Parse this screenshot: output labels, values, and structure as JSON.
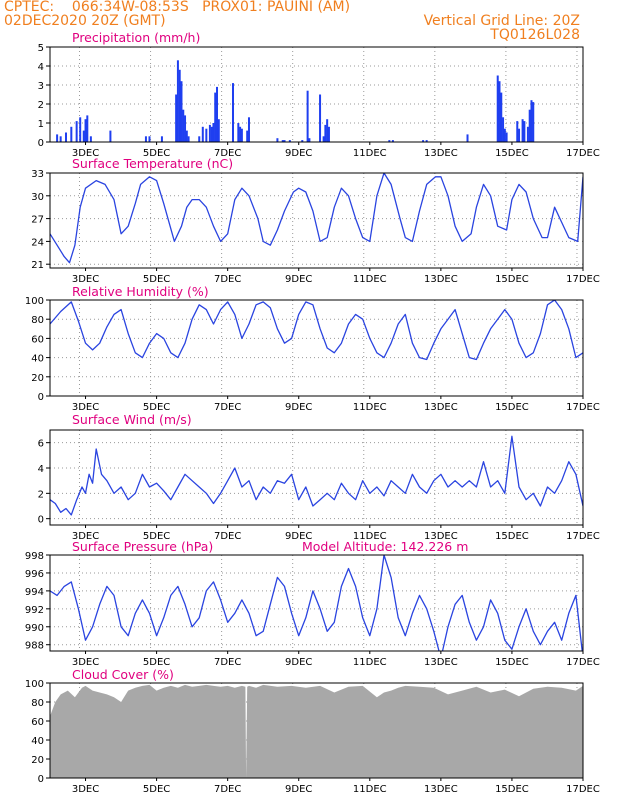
{
  "header": {
    "line1_left": "CPTEC:    066:34W-08:53S   PROX01: PAUINI (AM)",
    "line2_left": "02DEC2020 20Z (GMT)",
    "line2_right": "Vertical Grid Line: 20Z",
    "line3_right": "TQ0126L028"
  },
  "colors": {
    "header": "#f07f1f",
    "title": "#e0007f",
    "series": "#2a44e0",
    "precip": "#1f3ff0",
    "cloud": "#a8a8a8",
    "grid": "#9a9a9a"
  },
  "x_axis": {
    "range_days": [
      2.0,
      17.0
    ],
    "ticks": [
      {
        "day": 3,
        "label": "3DEC"
      },
      {
        "day": 5,
        "label": "5DEC"
      },
      {
        "day": 7,
        "label": "7DEC"
      },
      {
        "day": 9,
        "label": "9DEC"
      },
      {
        "day": 11,
        "label": "11DEC"
      },
      {
        "day": 13,
        "label": "13DEC"
      },
      {
        "day": 15,
        "label": "15DEC"
      },
      {
        "day": 17,
        "label": "17DEC"
      }
    ],
    "vertical_grid_days": [
      2.83,
      4.83,
      6.83,
      8.83,
      10.83,
      12.83,
      14.83,
      16.83
    ]
  },
  "chart_data": [
    {
      "type": "bar",
      "title": "Precipitation (mm/h)",
      "ylim": [
        0,
        5
      ],
      "yticks": [
        0,
        1,
        2,
        3,
        4,
        5
      ],
      "x": [
        2.2,
        2.3,
        2.45,
        2.6,
        2.75,
        2.85,
        2.95,
        3.0,
        3.05,
        3.15,
        3.7,
        4.7,
        4.8,
        5.15,
        5.55,
        5.6,
        5.65,
        5.7,
        5.75,
        5.8,
        5.85,
        5.9,
        6.2,
        6.3,
        6.4,
        6.5,
        6.55,
        6.6,
        6.65,
        6.7,
        6.75,
        7.15,
        7.3,
        7.35,
        7.4,
        7.55,
        7.6,
        8.4,
        8.55,
        8.6,
        8.75,
        9.1,
        9.25,
        9.3,
        9.6,
        9.7,
        9.75,
        9.8,
        9.85,
        11.55,
        11.65,
        12.5,
        12.6,
        13.75,
        14.6,
        14.65,
        14.7,
        14.75,
        14.8,
        14.85,
        15.15,
        15.2,
        15.3,
        15.35,
        15.45,
        15.5,
        15.55,
        15.6
      ],
      "values": [
        0.4,
        0.3,
        0.5,
        0.8,
        1.1,
        1.3,
        0.6,
        1.2,
        1.4,
        0.3,
        0.6,
        0.3,
        0.3,
        0.3,
        2.5,
        4.3,
        3.8,
        3.2,
        1.7,
        1.4,
        0.6,
        0.3,
        0.3,
        0.8,
        0.7,
        0.9,
        0.8,
        1.0,
        2.6,
        2.9,
        1.2,
        3.1,
        1.0,
        0.8,
        0.7,
        0.6,
        1.3,
        0.2,
        0.1,
        0.1,
        0.1,
        0.1,
        2.7,
        0.2,
        2.5,
        0.3,
        0.9,
        1.2,
        0.8,
        0.1,
        0.1,
        0.1,
        0.1,
        0.4,
        3.5,
        3.2,
        2.6,
        1.3,
        0.7,
        0.5,
        1.1,
        0.7,
        1.2,
        1.1,
        0.8,
        1.7,
        2.2,
        2.1
      ]
    },
    {
      "type": "line",
      "title": "Surface Temperature (nC)",
      "ylim": [
        20.5,
        33
      ],
      "yticks": [
        21,
        24,
        27,
        30,
        33
      ],
      "x": [
        2.0,
        2.2,
        2.4,
        2.55,
        2.7,
        2.85,
        3.0,
        3.3,
        3.55,
        3.8,
        4.0,
        4.2,
        4.4,
        4.55,
        4.8,
        5.0,
        5.2,
        5.5,
        5.7,
        5.85,
        6.0,
        6.2,
        6.4,
        6.6,
        6.8,
        7.0,
        7.2,
        7.4,
        7.6,
        7.85,
        8.0,
        8.2,
        8.4,
        8.6,
        8.85,
        9.0,
        9.2,
        9.4,
        9.6,
        9.8,
        10.0,
        10.2,
        10.4,
        10.6,
        10.8,
        11.0,
        11.2,
        11.4,
        11.6,
        11.85,
        12.0,
        12.2,
        12.4,
        12.6,
        12.85,
        13.0,
        13.2,
        13.4,
        13.6,
        13.85,
        14.0,
        14.2,
        14.4,
        14.6,
        14.85,
        15.0,
        15.2,
        15.4,
        15.6,
        15.85,
        16.0,
        16.2,
        16.4,
        16.6,
        16.85,
        17.0
      ],
      "values": [
        25.0,
        23.5,
        22.0,
        21.2,
        23.5,
        28.5,
        31.0,
        32.0,
        31.5,
        29.5,
        25.0,
        26.0,
        29.0,
        31.5,
        32.5,
        32.0,
        29.0,
        24.0,
        26.0,
        28.5,
        29.5,
        29.5,
        28.5,
        26.0,
        24.0,
        25.0,
        29.5,
        31.0,
        30.0,
        27.0,
        24.0,
        23.5,
        25.5,
        28.0,
        30.5,
        31.0,
        30.5,
        28.0,
        24.0,
        24.5,
        28.5,
        31.0,
        30.0,
        27.0,
        24.5,
        24.0,
        30.0,
        33.0,
        31.5,
        27.0,
        24.5,
        24.0,
        28.0,
        31.5,
        32.5,
        32.5,
        30.0,
        26.0,
        24.0,
        25.0,
        28.5,
        31.5,
        30.0,
        26.0,
        25.5,
        29.5,
        31.5,
        30.5,
        27.0,
        24.5,
        24.5,
        28.5,
        26.5,
        24.5,
        24.0,
        32.5
      ]
    },
    {
      "type": "line",
      "title": "Relative Humidity (%)",
      "ylim": [
        0,
        100
      ],
      "yticks": [
        0,
        20,
        40,
        60,
        80,
        100
      ],
      "x": [
        2.0,
        2.3,
        2.6,
        2.8,
        3.0,
        3.2,
        3.4,
        3.6,
        3.8,
        4.0,
        4.2,
        4.4,
        4.6,
        4.8,
        5.0,
        5.2,
        5.4,
        5.6,
        5.8,
        6.0,
        6.2,
        6.4,
        6.6,
        6.8,
        7.0,
        7.2,
        7.4,
        7.6,
        7.8,
        8.0,
        8.2,
        8.4,
        8.6,
        8.8,
        9.0,
        9.2,
        9.4,
        9.6,
        9.8,
        10.0,
        10.2,
        10.4,
        10.6,
        10.8,
        11.0,
        11.2,
        11.4,
        11.6,
        11.8,
        12.0,
        12.2,
        12.4,
        12.6,
        12.8,
        13.0,
        13.2,
        13.4,
        13.6,
        13.8,
        14.0,
        14.2,
        14.4,
        14.6,
        14.8,
        15.0,
        15.2,
        15.4,
        15.6,
        15.8,
        16.0,
        16.2,
        16.4,
        16.6,
        16.8,
        17.0
      ],
      "values": [
        75,
        88,
        98,
        78,
        55,
        48,
        55,
        72,
        85,
        90,
        65,
        45,
        40,
        55,
        65,
        60,
        45,
        40,
        55,
        80,
        95,
        90,
        75,
        90,
        98,
        85,
        60,
        75,
        95,
        98,
        92,
        70,
        55,
        60,
        85,
        98,
        95,
        70,
        50,
        45,
        55,
        75,
        85,
        80,
        60,
        45,
        40,
        55,
        75,
        85,
        55,
        40,
        38,
        55,
        70,
        80,
        90,
        65,
        40,
        38,
        55,
        70,
        80,
        90,
        80,
        55,
        40,
        45,
        65,
        95,
        100,
        90,
        70,
        40,
        45
      ]
    },
    {
      "type": "line",
      "title": "Surface Wind (m/s)",
      "ylim": [
        -0.5,
        7
      ],
      "yticks": [
        0,
        2,
        4,
        6
      ],
      "x": [
        2.0,
        2.15,
        2.3,
        2.45,
        2.6,
        2.75,
        2.9,
        3.0,
        3.1,
        3.2,
        3.3,
        3.45,
        3.6,
        3.8,
        4.0,
        4.2,
        4.4,
        4.6,
        4.8,
        5.0,
        5.2,
        5.4,
        5.6,
        5.8,
        6.0,
        6.2,
        6.4,
        6.6,
        6.8,
        7.0,
        7.2,
        7.4,
        7.6,
        7.8,
        8.0,
        8.2,
        8.4,
        8.6,
        8.8,
        9.0,
        9.2,
        9.4,
        9.6,
        9.8,
        10.0,
        10.2,
        10.4,
        10.6,
        10.8,
        11.0,
        11.2,
        11.4,
        11.6,
        11.8,
        12.0,
        12.2,
        12.4,
        12.6,
        12.8,
        13.0,
        13.2,
        13.4,
        13.6,
        13.8,
        14.0,
        14.2,
        14.4,
        14.6,
        14.8,
        15.0,
        15.2,
        15.4,
        15.6,
        15.8,
        16.0,
        16.2,
        16.4,
        16.6,
        16.8,
        17.0
      ],
      "values": [
        1.5,
        1.2,
        0.5,
        0.8,
        0.3,
        1.5,
        2.5,
        2.0,
        3.5,
        2.8,
        5.5,
        3.5,
        3.0,
        2.0,
        2.5,
        1.5,
        2.0,
        3.5,
        2.5,
        2.8,
        2.2,
        1.5,
        2.5,
        3.5,
        3.0,
        2.5,
        2.0,
        1.2,
        2.0,
        3.0,
        4.0,
        2.5,
        3.0,
        1.5,
        2.5,
        2.0,
        3.0,
        2.8,
        3.5,
        1.5,
        2.5,
        1.0,
        1.5,
        2.0,
        1.5,
        2.8,
        2.0,
        1.5,
        3.0,
        2.0,
        2.5,
        1.8,
        3.0,
        2.5,
        2.0,
        3.5,
        2.5,
        2.0,
        3.0,
        3.5,
        2.5,
        3.0,
        2.5,
        3.0,
        2.5,
        4.5,
        2.5,
        3.0,
        2.0,
        6.5,
        2.5,
        1.5,
        2.0,
        1.0,
        2.5,
        2.0,
        3.0,
        4.5,
        3.5,
        1.0
      ]
    },
    {
      "type": "line",
      "title": "Surface Pressure (hPa)",
      "annotation": "Model Altitude: 142.226 m",
      "ylim": [
        987.3,
        998
      ],
      "yticks": [
        988,
        990,
        992,
        994,
        996,
        998
      ],
      "x": [
        2.0,
        2.2,
        2.4,
        2.6,
        2.8,
        3.0,
        3.2,
        3.4,
        3.6,
        3.8,
        4.0,
        4.2,
        4.4,
        4.6,
        4.8,
        5.0,
        5.2,
        5.4,
        5.6,
        5.8,
        6.0,
        6.2,
        6.4,
        6.6,
        6.8,
        7.0,
        7.2,
        7.4,
        7.6,
        7.8,
        8.0,
        8.2,
        8.4,
        8.6,
        8.8,
        9.0,
        9.2,
        9.4,
        9.6,
        9.8,
        10.0,
        10.2,
        10.4,
        10.6,
        10.8,
        11.0,
        11.2,
        11.4,
        11.6,
        11.8,
        12.0,
        12.2,
        12.4,
        12.6,
        12.8,
        13.0,
        13.2,
        13.4,
        13.6,
        13.8,
        14.0,
        14.2,
        14.4,
        14.6,
        14.8,
        15.0,
        15.2,
        15.4,
        15.6,
        15.8,
        16.0,
        16.2,
        16.4,
        16.6,
        16.8,
        17.0
      ],
      "values": [
        994.0,
        993.5,
        994.5,
        995.0,
        992.0,
        988.5,
        990.0,
        992.5,
        994.5,
        993.5,
        990.0,
        989.0,
        991.5,
        993.0,
        991.5,
        989.0,
        991.0,
        993.5,
        994.5,
        992.5,
        990.0,
        991.0,
        994.0,
        995.0,
        993.0,
        990.5,
        991.5,
        993.0,
        991.5,
        989.0,
        989.5,
        992.5,
        995.5,
        994.5,
        991.5,
        989.0,
        991.0,
        994.0,
        992.0,
        989.5,
        990.5,
        994.5,
        996.5,
        994.5,
        991.0,
        989.0,
        992.0,
        998.0,
        995.5,
        991.0,
        989.0,
        991.5,
        993.5,
        992.0,
        989.5,
        986.5,
        990.0,
        992.5,
        993.5,
        990.5,
        988.5,
        990.0,
        993.0,
        991.5,
        988.5,
        987.5,
        990.0,
        992.0,
        989.5,
        988.0,
        989.5,
        990.5,
        988.5,
        991.5,
        993.5,
        986.5
      ]
    },
    {
      "type": "area",
      "title": "Cloud Cover (%)",
      "ylim": [
        0,
        100
      ],
      "yticks": [
        0,
        20,
        40,
        60,
        80,
        100
      ],
      "x": [
        2.0,
        2.15,
        2.3,
        2.5,
        2.7,
        2.9,
        3.0,
        3.2,
        3.4,
        3.6,
        3.8,
        4.0,
        4.2,
        4.4,
        4.6,
        4.8,
        5.0,
        5.2,
        5.4,
        5.6,
        5.8,
        6.0,
        6.2,
        6.4,
        6.6,
        6.8,
        7.0,
        7.2,
        7.4,
        7.5,
        7.52,
        7.55,
        7.6,
        7.8,
        8.0,
        8.4,
        8.8,
        9.2,
        9.6,
        10.0,
        10.4,
        10.8,
        11.2,
        11.4,
        11.6,
        11.8,
        12.0,
        12.4,
        12.8,
        13.2,
        13.6,
        14.0,
        14.4,
        14.8,
        15.2,
        15.6,
        16.0,
        16.4,
        16.8,
        17.0
      ],
      "values": [
        65,
        80,
        88,
        92,
        85,
        95,
        97,
        92,
        90,
        88,
        85,
        80,
        92,
        95,
        97,
        98,
        92,
        95,
        97,
        95,
        98,
        96,
        97,
        98,
        97,
        96,
        97,
        95,
        97,
        96,
        0,
        96,
        97,
        95,
        98,
        96,
        97,
        95,
        97,
        90,
        96,
        97,
        85,
        90,
        92,
        95,
        97,
        96,
        95,
        88,
        92,
        96,
        90,
        93,
        86,
        94,
        96,
        95,
        92,
        97
      ]
    }
  ]
}
